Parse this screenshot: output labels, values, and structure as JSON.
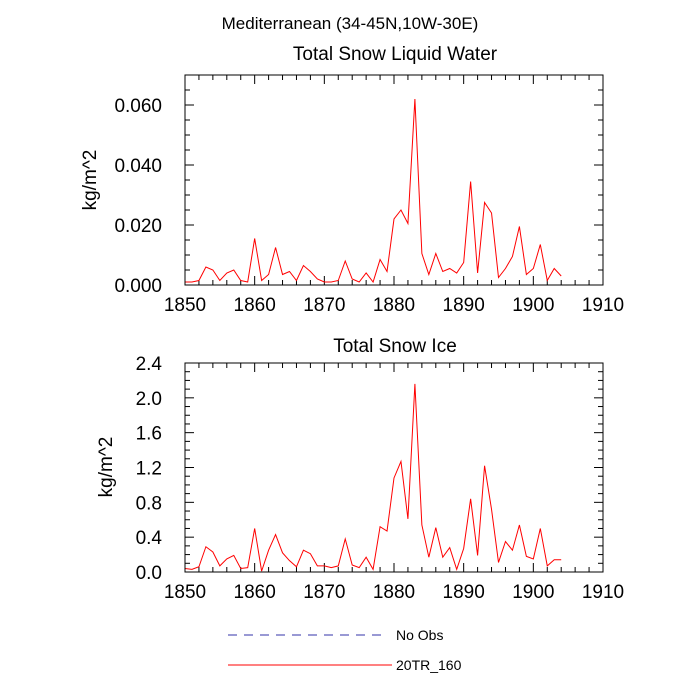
{
  "figure_title": "Mediterranean (34-45N,10W-30E)",
  "colors": {
    "model": "#ff0000",
    "obs": "#3333aa",
    "axis": "#000000"
  },
  "legend": [
    {
      "label": "No Obs",
      "style": "dashed",
      "color": "#3333aa"
    },
    {
      "label": "20TR_160",
      "style": "solid",
      "color": "#ff0000"
    }
  ],
  "chart_data": [
    {
      "type": "line",
      "title": "Total Snow Liquid Water",
      "xlabel": "",
      "ylabel": "kg/m^2",
      "xlim": [
        1850,
        1910
      ],
      "ylim": [
        0,
        0.07
      ],
      "xticks": [
        1850,
        1860,
        1870,
        1880,
        1890,
        1900,
        1910
      ],
      "yticks": [
        0.0,
        0.02,
        0.04,
        0.06
      ],
      "ytick_labels": [
        "0.000",
        "0.020",
        "0.040",
        "0.060"
      ],
      "series": [
        {
          "name": "20TR_160",
          "x": [
            1850,
            1851,
            1852,
            1853,
            1854,
            1855,
            1856,
            1857,
            1858,
            1859,
            1860,
            1861,
            1862,
            1863,
            1864,
            1865,
            1866,
            1867,
            1868,
            1869,
            1870,
            1871,
            1872,
            1873,
            1874,
            1875,
            1876,
            1877,
            1878,
            1879,
            1880,
            1881,
            1882,
            1883,
            1884,
            1885,
            1886,
            1887,
            1888,
            1889,
            1890,
            1891,
            1892,
            1893,
            1894,
            1895,
            1896,
            1897,
            1898,
            1899,
            1900,
            1901,
            1902,
            1903,
            1904
          ],
          "values": [
            0.001,
            0.001,
            0.0015,
            0.006,
            0.005,
            0.0015,
            0.004,
            0.005,
            0.0015,
            0.001,
            0.0155,
            0.0015,
            0.0035,
            0.0125,
            0.0035,
            0.0045,
            0.0015,
            0.0065,
            0.0045,
            0.002,
            0.001,
            0.001,
            0.0015,
            0.008,
            0.002,
            0.001,
            0.004,
            0.001,
            0.0085,
            0.0045,
            0.022,
            0.025,
            0.0205,
            0.062,
            0.0105,
            0.0035,
            0.0105,
            0.0045,
            0.0055,
            0.004,
            0.0075,
            0.0345,
            0.004,
            0.0275,
            0.024,
            0.0025,
            0.0055,
            0.0095,
            0.0195,
            0.0035,
            0.0055,
            0.0135,
            0.0015,
            0.0055,
            0.003
          ]
        }
      ]
    },
    {
      "type": "line",
      "title": "Total Snow Ice",
      "xlabel": "",
      "ylabel": "kg/m^2",
      "xlim": [
        1850,
        1910
      ],
      "ylim": [
        0,
        2.4
      ],
      "xticks": [
        1850,
        1860,
        1870,
        1880,
        1890,
        1900,
        1910
      ],
      "yticks": [
        0.0,
        0.4,
        0.8,
        1.2,
        1.6,
        2.0,
        2.4
      ],
      "ytick_labels": [
        "0.0",
        "0.4",
        "0.8",
        "1.2",
        "1.6",
        "2.0",
        "2.4"
      ],
      "series": [
        {
          "name": "20TR_160",
          "x": [
            1850,
            1851,
            1852,
            1853,
            1854,
            1855,
            1856,
            1857,
            1858,
            1859,
            1860,
            1861,
            1862,
            1863,
            1864,
            1865,
            1866,
            1867,
            1868,
            1869,
            1870,
            1871,
            1872,
            1873,
            1874,
            1875,
            1876,
            1877,
            1878,
            1879,
            1880,
            1881,
            1882,
            1883,
            1884,
            1885,
            1886,
            1887,
            1888,
            1889,
            1890,
            1891,
            1892,
            1893,
            1894,
            1895,
            1896,
            1897,
            1898,
            1899,
            1900,
            1901,
            1902,
            1903,
            1904
          ],
          "values": [
            0.04,
            0.03,
            0.06,
            0.29,
            0.23,
            0.07,
            0.15,
            0.19,
            0.04,
            0.05,
            0.5,
            0.01,
            0.25,
            0.43,
            0.22,
            0.13,
            0.06,
            0.25,
            0.21,
            0.07,
            0.07,
            0.05,
            0.07,
            0.38,
            0.08,
            0.05,
            0.17,
            0.03,
            0.52,
            0.47,
            1.08,
            1.27,
            0.61,
            2.16,
            0.54,
            0.17,
            0.51,
            0.17,
            0.28,
            0.03,
            0.27,
            0.84,
            0.19,
            1.22,
            0.72,
            0.11,
            0.35,
            0.25,
            0.54,
            0.18,
            0.15,
            0.5,
            0.07,
            0.14,
            0.14
          ]
        }
      ]
    }
  ]
}
